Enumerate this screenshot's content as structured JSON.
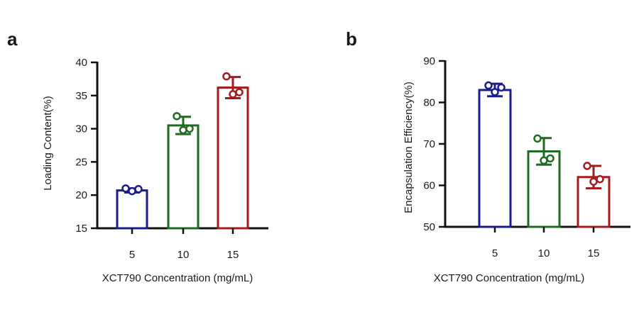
{
  "chart_data": [
    {
      "panel": "a",
      "type": "bar",
      "categories": [
        "5",
        "10",
        "15"
      ],
      "values": [
        20.7,
        30.5,
        36.2
      ],
      "errors": [
        0.3,
        1.3,
        1.6
      ],
      "points": [
        [
          21.0,
          20.6,
          20.9
        ],
        [
          31.9,
          29.8,
          30.0
        ],
        [
          37.9,
          35.2,
          35.5
        ]
      ],
      "colors": [
        "#1c1c8f",
        "#1f6b22",
        "#a31a1f"
      ],
      "xlabel": "XCT790 Concentration (mg/mL)",
      "ylabel": "Loading Content(%)",
      "ylim": [
        15,
        40
      ],
      "yticks": [
        15,
        20,
        25,
        30,
        35,
        40
      ]
    },
    {
      "panel": "b",
      "type": "bar",
      "categories": [
        "5",
        "10",
        "15"
      ],
      "values": [
        83.0,
        68.2,
        62.0
      ],
      "errors": [
        1.5,
        3.2,
        2.7
      ],
      "points": [
        [
          84.1,
          82.5,
          83.6
        ],
        [
          71.3,
          66.0,
          66.5
        ],
        [
          64.7,
          60.9,
          61.5
        ]
      ],
      "colors": [
        "#1c1c8f",
        "#1f6b22",
        "#a31a1f"
      ],
      "xlabel": "XCT790 Concentration (mg/mL)",
      "ylabel": "Encapsulation Efficiency(%)",
      "ylim": [
        50,
        90
      ],
      "yticks": [
        50,
        60,
        70,
        80,
        90
      ]
    }
  ]
}
